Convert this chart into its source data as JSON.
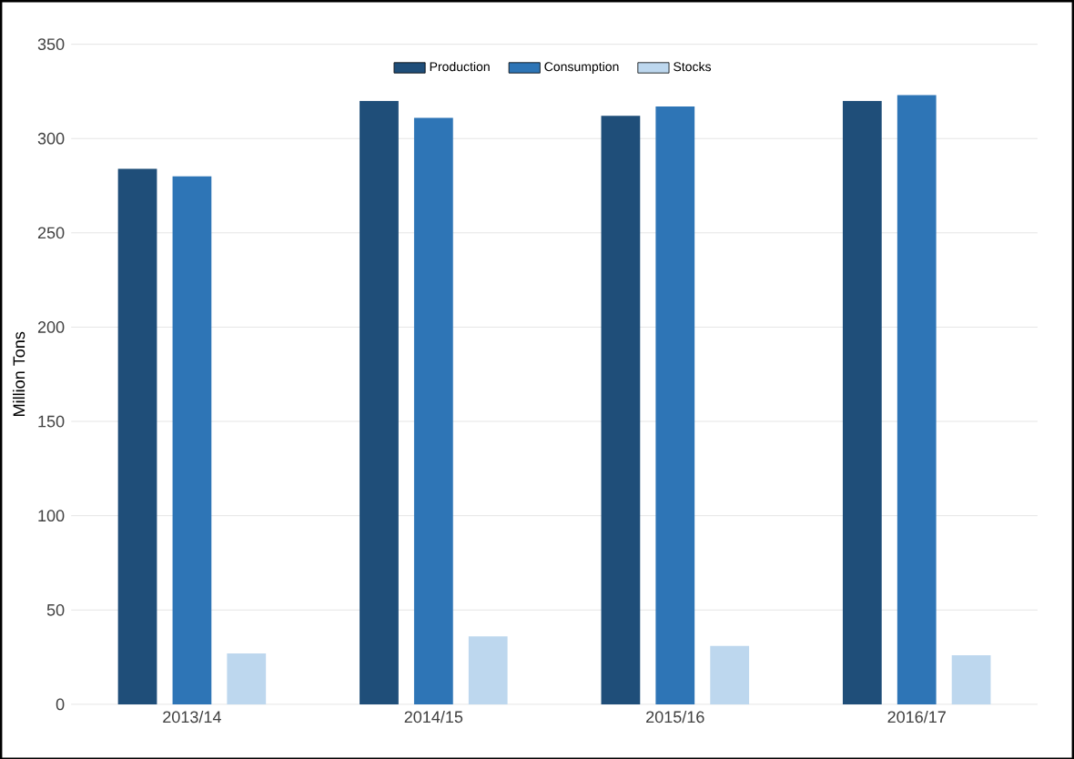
{
  "chart_data": {
    "type": "bar",
    "ylabel": "Million Tons",
    "categories": [
      "2013/14",
      "2014/15",
      "2015/16",
      "2016/17"
    ],
    "series": [
      {
        "name": "Production",
        "color": "#1f4e79",
        "values": [
          284,
          320,
          312,
          320
        ]
      },
      {
        "name": "Consumption",
        "color": "#2e75b6",
        "values": [
          280,
          311,
          317,
          323
        ]
      },
      {
        "name": "Stocks",
        "color": "#bdd7ee",
        "values": [
          27,
          36,
          31,
          26
        ]
      }
    ],
    "ylim": [
      0,
      350
    ],
    "yticks": [
      0,
      50,
      100,
      150,
      200,
      250,
      300,
      350
    ],
    "grid": "y",
    "legend": "top"
  }
}
